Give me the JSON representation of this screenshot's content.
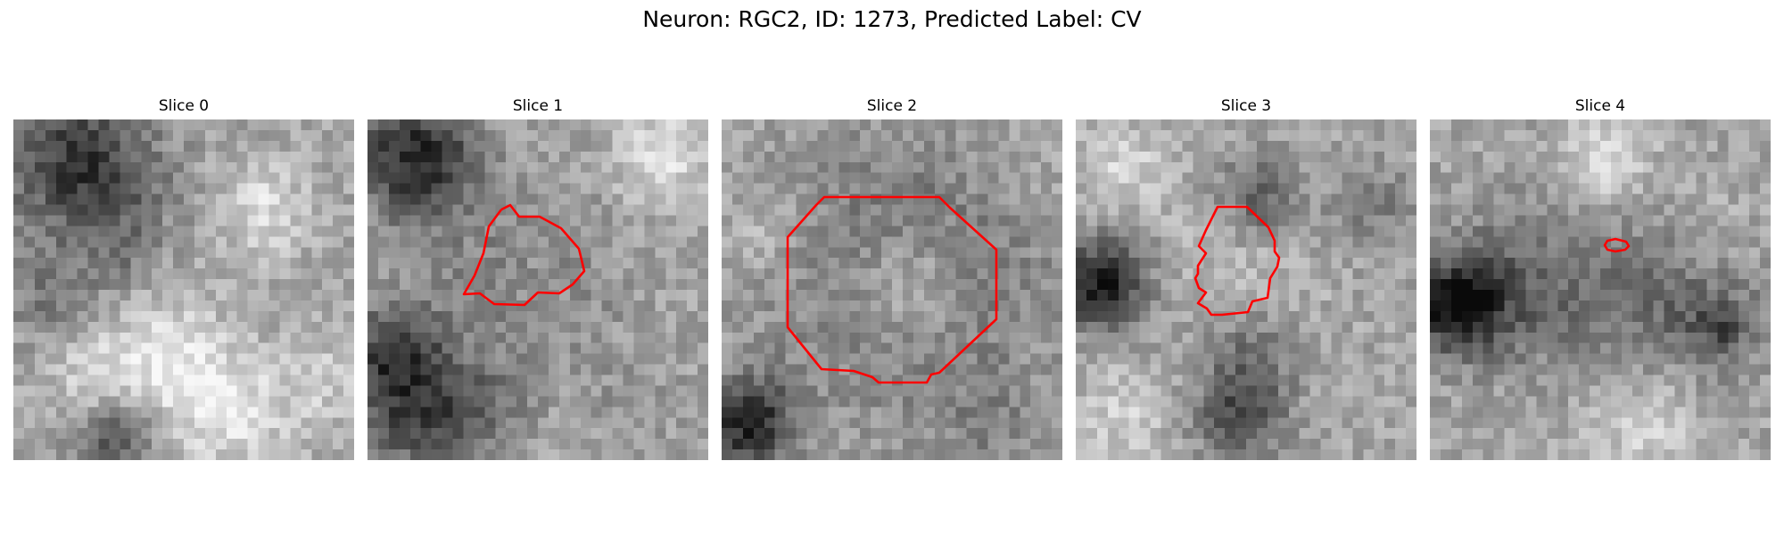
{
  "figure": {
    "title": "Neuron: RGC2, ID: 1273, Predicted Label: CV",
    "contour_color": "#ff0000",
    "colormap": "gray"
  },
  "panels": [
    {
      "title": "Slice 0"
    },
    {
      "title": "Slice 1"
    },
    {
      "title": "Slice 2"
    },
    {
      "title": "Slice 3"
    },
    {
      "title": "Slice 4"
    }
  ]
}
